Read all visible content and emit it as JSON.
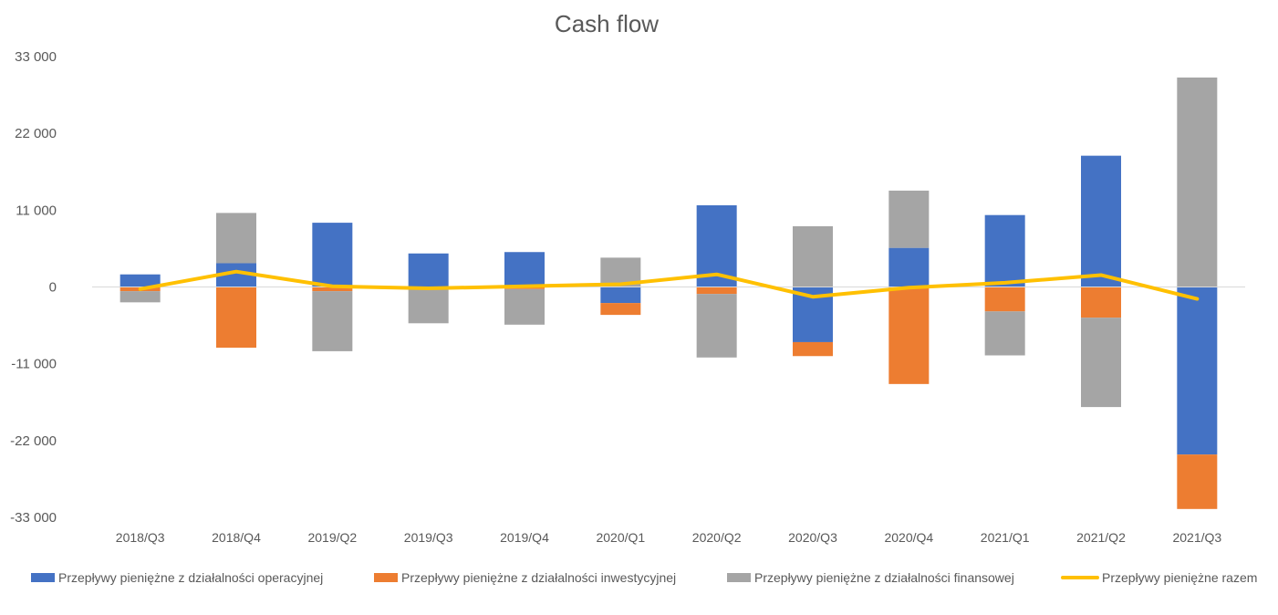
{
  "chart_data": {
    "type": "bar",
    "stacked": true,
    "title": "Cash flow",
    "xlabel": "",
    "ylabel": "",
    "ylim": [
      -33000,
      33000
    ],
    "yticks": [
      33000,
      22000,
      11000,
      0,
      -11000,
      -22000,
      -33000
    ],
    "ytick_labels": [
      "33 000",
      "22 000",
      "11 000",
      "0",
      "-11 000",
      "-22 000",
      "-33 000"
    ],
    "grid": false,
    "legend_position": "bottom",
    "categories": [
      "2018/Q3",
      "2018/Q4",
      "2019/Q2",
      "2019/Q3",
      "2019/Q4",
      "2020/Q1",
      "2020/Q2",
      "2020/Q3",
      "2020/Q4",
      "2021/Q1",
      "2021/Q2",
      "2021/Q3"
    ],
    "series": [
      {
        "name": "Przepływy pieniężne z działalności operacyjnej",
        "type": "bar",
        "color": "#4472c4",
        "values": [
          1800,
          3400,
          9200,
          4800,
          5000,
          -2300,
          11700,
          -7900,
          5600,
          10300,
          18800,
          -24000
        ]
      },
      {
        "name": "Przepływy pieniężne z działalności inwestycyjnej",
        "type": "bar",
        "color": "#ed7d31",
        "values": [
          -600,
          -8700,
          -600,
          -300,
          -300,
          -1700,
          -1000,
          -2000,
          -13900,
          -3500,
          -4400,
          -7800
        ]
      },
      {
        "name": "Przepływy pieniężne z działalności finansowej",
        "type": "bar",
        "color": "#a5a5a5",
        "values": [
          -1600,
          7200,
          -8600,
          -4900,
          -5100,
          4200,
          -9100,
          8700,
          8200,
          -6300,
          -12800,
          30000
        ]
      },
      {
        "name": "Przepływy pieniężne razem",
        "type": "line",
        "color": "#ffc000",
        "values": [
          -300,
          2200,
          100,
          -200,
          100,
          400,
          1800,
          -1400,
          -100,
          600,
          1700,
          -1700
        ]
      }
    ]
  }
}
